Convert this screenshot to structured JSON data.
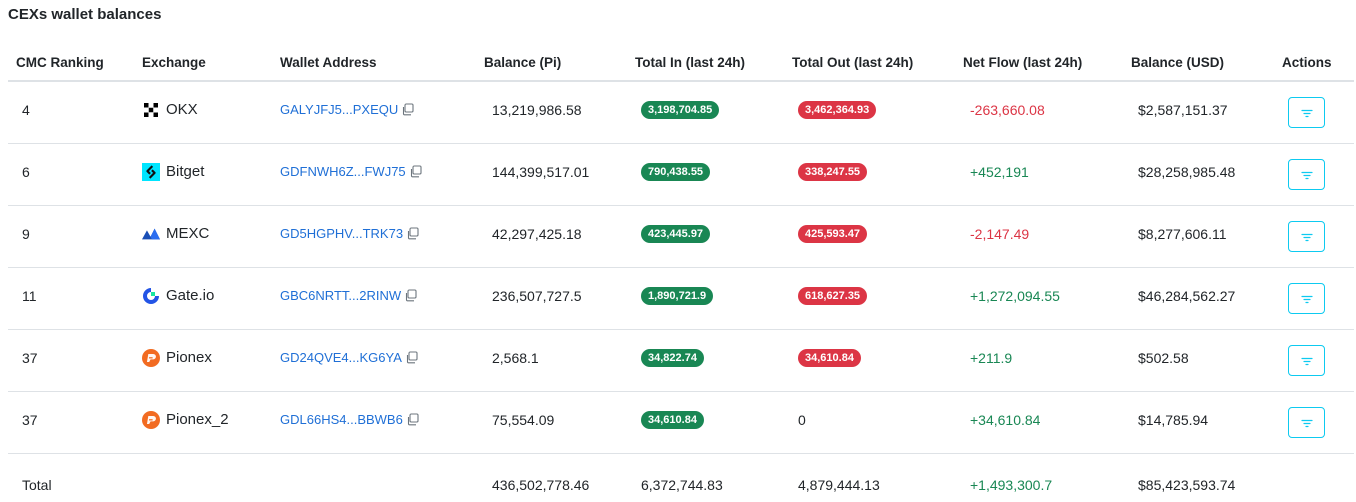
{
  "title": "CEXs wallet balances",
  "colors": {
    "positive": "#198754",
    "negative": "#dc3545",
    "link": "#1f6fd6",
    "action_border": "#0dcaf0"
  },
  "table": {
    "headers": {
      "rank": "CMC Ranking",
      "exchange": "Exchange",
      "address": "Wallet Address",
      "balance_pi": "Balance (Pi)",
      "total_in": "Total In (last 24h)",
      "total_out": "Total Out (last 24h)",
      "net_flow": "Net Flow (last 24h)",
      "balance_usd": "Balance (USD)",
      "actions": "Actions"
    },
    "rows": [
      {
        "rank": "4",
        "exchange": "OKX",
        "icon": "okx-logo-icon",
        "address": "GALYJFJ5...PXEQU",
        "balance_pi": "13,219,986.58",
        "total_in": "3,198,704.85",
        "total_out": "3,462,364.93",
        "net_flow": "-263,660.08",
        "net_sign": "negative",
        "balance_usd": "$2,587,151.37"
      },
      {
        "rank": "6",
        "exchange": "Bitget",
        "icon": "bitget-logo-icon",
        "address": "GDFNWH6Z...FWJ75",
        "balance_pi": "144,399,517.01",
        "total_in": "790,438.55",
        "total_out": "338,247.55",
        "net_flow": "+452,191",
        "net_sign": "positive",
        "balance_usd": "$28,258,985.48"
      },
      {
        "rank": "9",
        "exchange": "MEXC",
        "icon": "mexc-logo-icon",
        "address": "GD5HGPHV...TRK73",
        "balance_pi": "42,297,425.18",
        "total_in": "423,445.97",
        "total_out": "425,593.47",
        "net_flow": "-2,147.49",
        "net_sign": "negative",
        "balance_usd": "$8,277,606.11"
      },
      {
        "rank": "11",
        "exchange": "Gate.io",
        "icon": "gateio-logo-icon",
        "address": "GBC6NRTT...2RINW",
        "balance_pi": "236,507,727.5",
        "total_in": "1,890,721.9",
        "total_out": "618,627.35",
        "net_flow": "+1,272,094.55",
        "net_sign": "positive",
        "balance_usd": "$46,284,562.27"
      },
      {
        "rank": "37",
        "exchange": "Pionex",
        "icon": "pionex-logo-icon",
        "address": "GD24QVE4...KG6YA",
        "balance_pi": "2,568.1",
        "total_in": "34,822.74",
        "total_out": "34,610.84",
        "net_flow": "+211.9",
        "net_sign": "positive",
        "balance_usd": "$502.58"
      },
      {
        "rank": "37",
        "exchange": "Pionex_2",
        "icon": "pionex-logo-icon",
        "address": "GDL66HS4...BBWB6",
        "balance_pi": "75,554.09",
        "total_in": "34,610.84",
        "total_out": "0",
        "net_flow": "+34,610.84",
        "net_sign": "positive",
        "balance_usd": "$14,785.94"
      }
    ],
    "total": {
      "label": "Total",
      "balance_pi": "436,502,778.46",
      "total_in": "6,372,744.83",
      "total_out": "4,879,444.13",
      "net_flow": "+1,493,300.7",
      "balance_usd": "$85,423,593.74"
    }
  }
}
